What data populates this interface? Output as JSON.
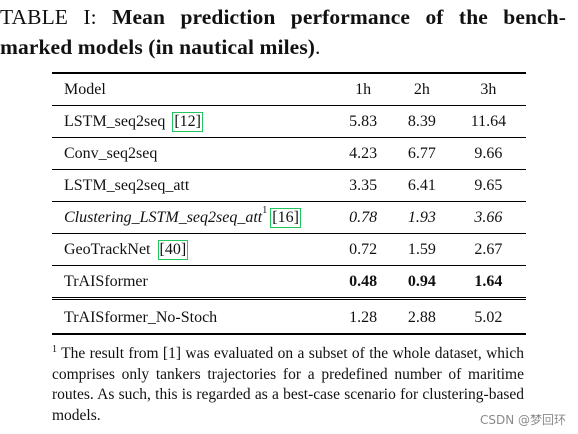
{
  "caption": {
    "label": "TABLE I:",
    "title_line1": "Mean prediction performance of the bench-",
    "title_line2": "marked models (in nautical miles)",
    "period": "."
  },
  "table": {
    "headers": [
      "Model",
      "1h",
      "2h",
      "3h"
    ],
    "rows": [
      {
        "model": "LSTM_seq2seq",
        "cite": "12",
        "sup": "",
        "v1": "5.83",
        "v2": "8.39",
        "v3": "11.64"
      },
      {
        "model": "Conv_seq2seq",
        "cite": "",
        "sup": "",
        "v1": "4.23",
        "v2": "6.77",
        "v3": "9.66"
      },
      {
        "model": "LSTM_seq2seq_att",
        "cite": "",
        "sup": "",
        "v1": "3.35",
        "v2": "6.41",
        "v3": "9.65"
      },
      {
        "model": "Clustering_LSTM_seq2seq_att",
        "cite": "16",
        "sup": "1",
        "v1": "0.78",
        "v2": "1.93",
        "v3": "3.66"
      },
      {
        "model": "GeoTrackNet",
        "cite": "40",
        "sup": "",
        "v1": "0.72",
        "v2": "1.59",
        "v3": "2.67"
      },
      {
        "model": "TrAISformer",
        "cite": "",
        "sup": "",
        "v1": "0.48",
        "v2": "0.94",
        "v3": "1.64"
      },
      {
        "model": "TrAISformer_No-Stoch",
        "cite": "",
        "sup": "",
        "v1": "1.28",
        "v2": "2.88",
        "v3": "5.02"
      }
    ]
  },
  "footnote": {
    "marker": "1",
    "text": "The result from [1] was evaluated on a subset of the whole dataset, which comprises only tankers trajectories for a predefined number of maritime routes. As such, this is regarded as a best-case scenario for clustering-based models."
  },
  "watermark": "CSDN @梦回环",
  "colors": {
    "text": "#111111",
    "cite_box": "#22c55e",
    "watermark": "#8a8a8a"
  }
}
